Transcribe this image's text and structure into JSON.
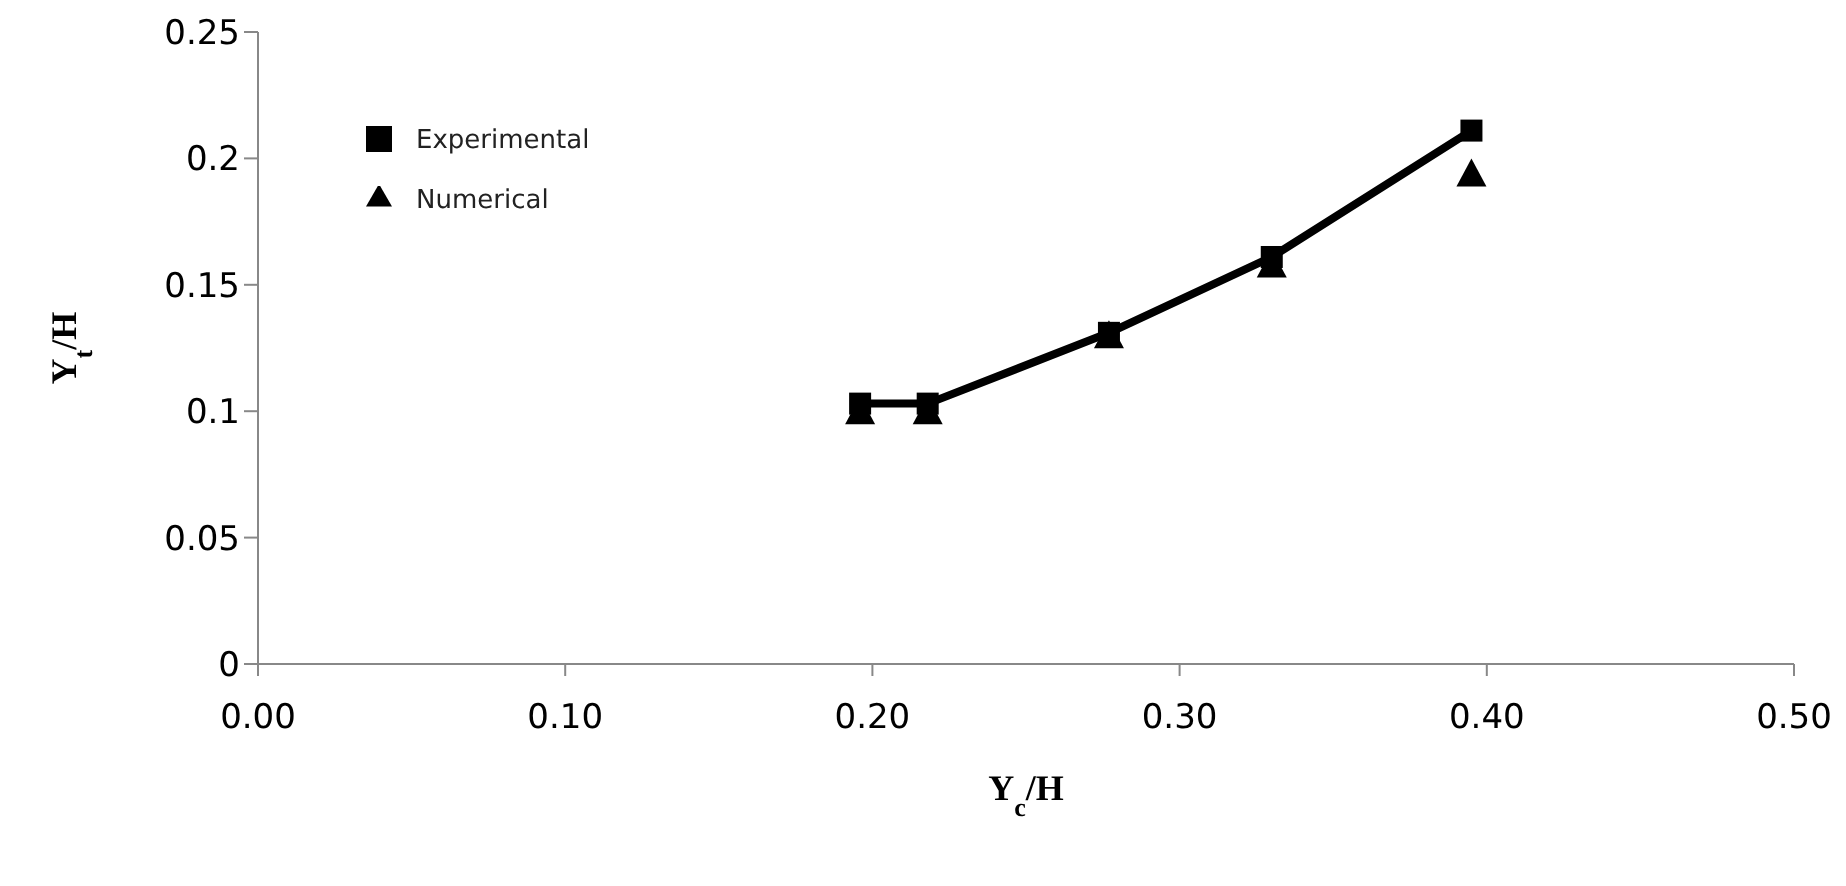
{
  "chart_data": {
    "type": "line",
    "xlabel": "Y$_{c}$/H",
    "ylabel": "Y$_{t}$/H",
    "xlim": [
      0,
      0.5
    ],
    "xticks": [
      {
        "value": 0,
        "label": "0.00"
      },
      {
        "value": 0.1,
        "label": "0.10"
      },
      {
        "value": 0.2,
        "label": "0.20"
      },
      {
        "value": 0.3,
        "label": "0.30"
      },
      {
        "value": 0.4,
        "label": "0.40"
      },
      {
        "value": 0.5,
        "label": "0.50"
      }
    ],
    "ylim": [
      0,
      0.25
    ],
    "yticks": [
      0,
      0.05,
      0.1,
      0.15,
      0.2,
      0.25
    ],
    "grid": false,
    "legend": "top left",
    "x": [
      0.196,
      0.218,
      0.277,
      0.33,
      0.395
    ],
    "series": [
      {
        "name": "Experimental",
        "type": "line",
        "marker": "square",
        "color": "#000000",
        "values": [
          0.103,
          0.103,
          0.131,
          0.161,
          0.211
        ]
      },
      {
        "name": "Numerical",
        "type": "scatter",
        "marker": "triangle",
        "color": "#000000",
        "values": [
          0.1,
          0.1,
          0.13,
          0.158,
          0.194
        ]
      }
    ]
  }
}
